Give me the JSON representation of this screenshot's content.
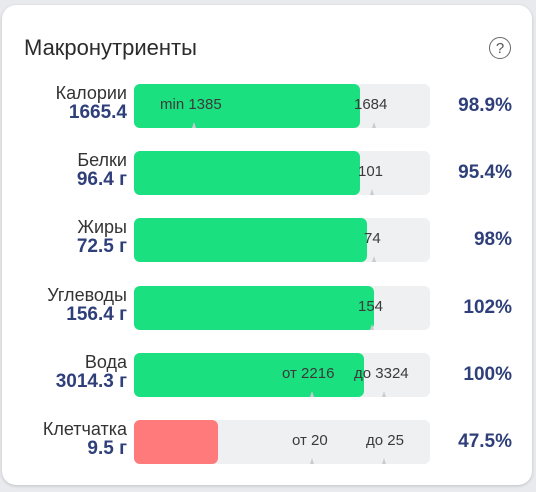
{
  "title": "Макронутриенты",
  "help_icon": "question-circle-icon",
  "colors": {
    "fill": "#1be07f",
    "fill_low": "#ff7a7a",
    "value": "#2f3f7a"
  },
  "rows": [
    {
      "name": "Калории",
      "value": "1665.4",
      "progress": 98.9,
      "min_label": "min 1385",
      "max_label": "1684",
      "percent": "98.9%"
    },
    {
      "name": "Белки",
      "value": "96.4 г",
      "progress": 95.4,
      "max_label": "101",
      "percent": "95.4%"
    },
    {
      "name": "Жиры",
      "value": "72.5 г",
      "progress": 98,
      "max_label": "74",
      "percent": "98%"
    },
    {
      "name": "Углеводы",
      "value": "156.4 г",
      "progress": 102,
      "max_label": "154",
      "percent": "102%"
    },
    {
      "name": "Вода",
      "value": "3014.3 г",
      "progress": 100,
      "min_label": "от 2216",
      "max_label": "до 3324",
      "percent": "100%"
    },
    {
      "name": "Клетчатка",
      "value": "9.5 г",
      "progress": 47.5,
      "min_label": "от 20",
      "max_label": "до 25",
      "percent": "47.5%"
    }
  ]
}
